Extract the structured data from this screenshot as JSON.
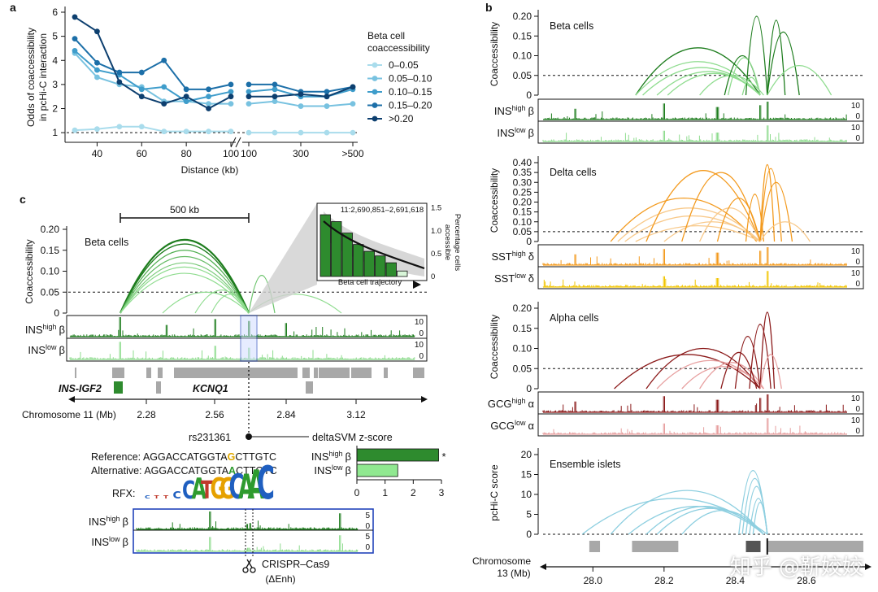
{
  "colors": {
    "green_dark": "#1e7d1e",
    "green_light": "#8fdc8f",
    "orange": "#f39a1e",
    "yellow": "#f2c500",
    "red_dark": "#8b1a1a",
    "red_light": "#e7a0a0",
    "blue_arc": "#8ecfe0",
    "gray_box": "#a8a8a8",
    "blue_box": "#2244bb",
    "bar_dark": "#2e8b2e",
    "bar_light": "#90e890",
    "a_series": [
      "#a9dcec",
      "#78c2e0",
      "#3f9dcb",
      "#1c6fa8",
      "#0d3f6f"
    ]
  },
  "panel_a": {
    "label": "a",
    "chart_data": {
      "type": "line",
      "ylabel": "Odds of coaccessibility\nin pcHi-C interaction",
      "xlabel": "Distance (kb)",
      "ylim": [
        0.6,
        6
      ],
      "yticks": [
        "1",
        "2",
        "3",
        "4",
        "5",
        "6"
      ],
      "left_x": [
        30,
        40,
        50,
        60,
        70,
        80,
        90,
        100
      ],
      "right_x": [
        100,
        200,
        300,
        400,
        500
      ],
      "left_ticks": [
        "40",
        "60",
        "80",
        "100"
      ],
      "right_ticks": [
        "100",
        "300",
        ">500"
      ],
      "legend_title": "Beta cell\ncoaccessibility",
      "series": [
        {
          "name": "0–0.05",
          "left": [
            1.1,
            1.15,
            1.25,
            1.25,
            1.05,
            1.05,
            1.05,
            1.05
          ],
          "right": [
            1.0,
            1.0,
            1.0,
            1.0,
            1.0
          ]
        },
        {
          "name": "0.05–0.10",
          "left": [
            4.3,
            3.3,
            3.0,
            2.9,
            2.3,
            2.3,
            2.2,
            2.2
          ],
          "right": [
            2.2,
            2.3,
            2.1,
            2.1,
            2.2
          ]
        },
        {
          "name": "0.10–0.15",
          "left": [
            4.4,
            3.6,
            3.4,
            2.8,
            2.9,
            2.3,
            2.5,
            2.7
          ],
          "right": [
            2.7,
            2.8,
            2.5,
            2.5,
            2.8
          ]
        },
        {
          "name": "0.15–0.20",
          "left": [
            4.9,
            3.9,
            3.5,
            3.5,
            4.0,
            2.8,
            2.8,
            3.0
          ],
          "right": [
            3.0,
            3.0,
            2.7,
            2.7,
            2.9
          ]
        },
        {
          "name": ">0.20",
          "left": [
            5.8,
            5.2,
            3.1,
            2.5,
            2.2,
            2.5,
            2.0,
            2.5
          ],
          "right": [
            2.5,
            2.5,
            2.6,
            2.5,
            2.9
          ]
        }
      ]
    }
  },
  "panel_b": {
    "label": "b",
    "chromosome_label": "Chromosome\n13 (Mb)",
    "xticks": [
      "28.0",
      "28.2",
      "28.4",
      "28.6"
    ],
    "xtick_values": [
      28.0,
      28.2,
      28.4,
      28.6
    ],
    "xrange": [
      27.86,
      28.76
    ],
    "tracks": [
      {
        "title": "Beta cells",
        "ylabel": "Coaccessibility",
        "yticks": [
          "0",
          "0.05",
          "0.10",
          "0.15",
          "0.20"
        ],
        "ymax": 0.2,
        "top": {
          "cell": "INS",
          "sup": "high",
          "greek": "β",
          "max": "10",
          "min": "0"
        },
        "bottom": {
          "cell": "INS",
          "sup": "low",
          "greek": "β",
          "max": "10",
          "min": "0"
        }
      },
      {
        "title": "Delta cells",
        "ylabel": "Coaccessibility",
        "yticks": [
          "0",
          "0.05",
          "0.10",
          "0.15",
          "0.20",
          "0.25",
          "0.30",
          "0.35",
          "0.40"
        ],
        "ymax": 0.4,
        "top": {
          "cell": "SST",
          "sup": "high",
          "greek": "δ",
          "max": "10",
          "min": "0"
        },
        "bottom": {
          "cell": "SST",
          "sup": "low",
          "greek": "δ",
          "max": "10",
          "min": "0"
        }
      },
      {
        "title": "Alpha cells",
        "ylabel": "Coaccessibility",
        "yticks": [
          "0",
          "0.05",
          "0.10",
          "0.15",
          "0.20"
        ],
        "ymax": 0.2,
        "top": {
          "cell": "GCG",
          "sup": "high",
          "greek": "α",
          "max": "10",
          "min": "0"
        },
        "bottom": {
          "cell": "GCG",
          "sup": "low",
          "greek": "α",
          "max": "10",
          "min": "0"
        }
      },
      {
        "title": "Ensemble islets",
        "ylabel": "pcHi-C score",
        "yticks": [
          "0",
          "5",
          "10",
          "15",
          "20"
        ],
        "ymax": 20
      }
    ]
  },
  "panel_c": {
    "label": "c",
    "scale_bar": "500 kb",
    "title": "Beta cells",
    "ylabel": "Coaccessibility",
    "yticks": [
      "0",
      "0.05",
      "0.10",
      "0.15",
      "0.20"
    ],
    "tracks": [
      {
        "cell": "INS",
        "sup": "high",
        "greek": "β",
        "max": "10",
        "min": "0"
      },
      {
        "cell": "INS",
        "sup": "low",
        "greek": "β",
        "max": "10",
        "min": "0"
      }
    ],
    "genes": [
      "INS-IGF2",
      "KCNQ1"
    ],
    "chromosome_label": "Chromosome 11 (Mb)",
    "xticks": [
      "2.28",
      "2.56",
      "2.84",
      "3.12"
    ],
    "inset": {
      "coords": "11:2,690,851–2,691,618",
      "xlabel": "Beta cell trajectory",
      "ylabel": "Percentage cells\naccessible",
      "yticks": [
        "0",
        "0.5",
        "1.0",
        "1.5"
      ],
      "bars": [
        1.35,
        1.2,
        0.95,
        0.7,
        0.55,
        0.45,
        0.3,
        0.12
      ]
    },
    "snp": "rs231361",
    "deltasvm_label": "deltaSVM z-score",
    "reference_label": "Reference:",
    "reference_pre": "AGGACCATGGTA",
    "reference_allele": "G",
    "reference_post": "CTTGTC",
    "alternative_label": "Alternative:",
    "alternative_pre": "AGGACCATGGTA",
    "alternative_allele": "A",
    "alternative_post": "CTTGTC",
    "rfx_label": "RFX:",
    "motif": "CTTCCATGGCAAC",
    "bar_chart": {
      "type": "bar",
      "categories": [
        "INS high β",
        "INS low β"
      ],
      "values": [
        2.9,
        1.45
      ],
      "xticks": [
        "0",
        "1",
        "2",
        "3"
      ],
      "xlim": [
        0,
        3
      ],
      "asterisk": "*"
    },
    "zoom_tracks": [
      {
        "cell": "INS",
        "sup": "high",
        "greek": "β",
        "max": "5",
        "min": "0"
      },
      {
        "cell": "INS",
        "sup": "low",
        "greek": "β",
        "max": "5",
        "min": "0"
      }
    ],
    "crispr": "CRISPR–Cas9",
    "enh": "(ΔEnh)"
  },
  "watermark": "知乎 @靳姣姣"
}
